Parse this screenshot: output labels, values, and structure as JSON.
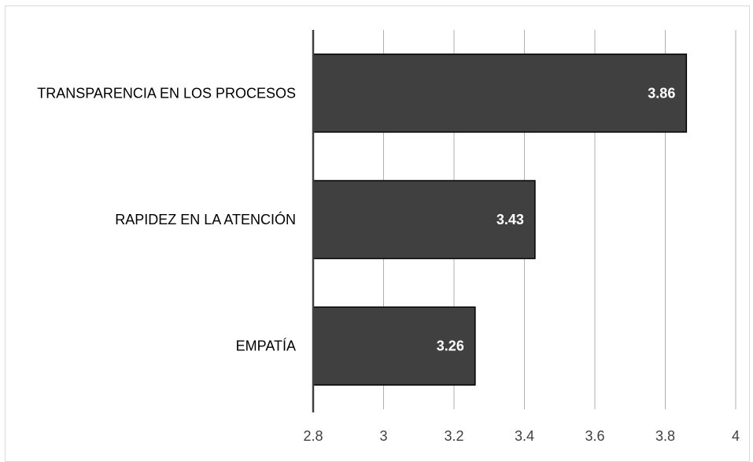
{
  "chart_data": {
    "type": "bar",
    "orientation": "horizontal",
    "categories": [
      "TRANSPARENCIA EN LOS PROCESOS",
      "RAPIDEZ EN LA ATENCIÓN",
      "EMPATÍA"
    ],
    "values": [
      3.86,
      3.43,
      3.26
    ],
    "data_labels": [
      "3.86",
      "3.43",
      "3.26"
    ],
    "xlim": [
      2.8,
      4
    ],
    "x_ticks": [
      2.8,
      3,
      3.2,
      3.4,
      3.6,
      3.8,
      4
    ],
    "x_tick_labels": [
      "2.8",
      "3",
      "3.2",
      "3.4",
      "3.6",
      "3.8",
      "4"
    ],
    "grid": "vertical",
    "legend": "none",
    "bar_color": "#404040",
    "bar_edge_color": "#000000",
    "label_color": "#ffffff"
  }
}
